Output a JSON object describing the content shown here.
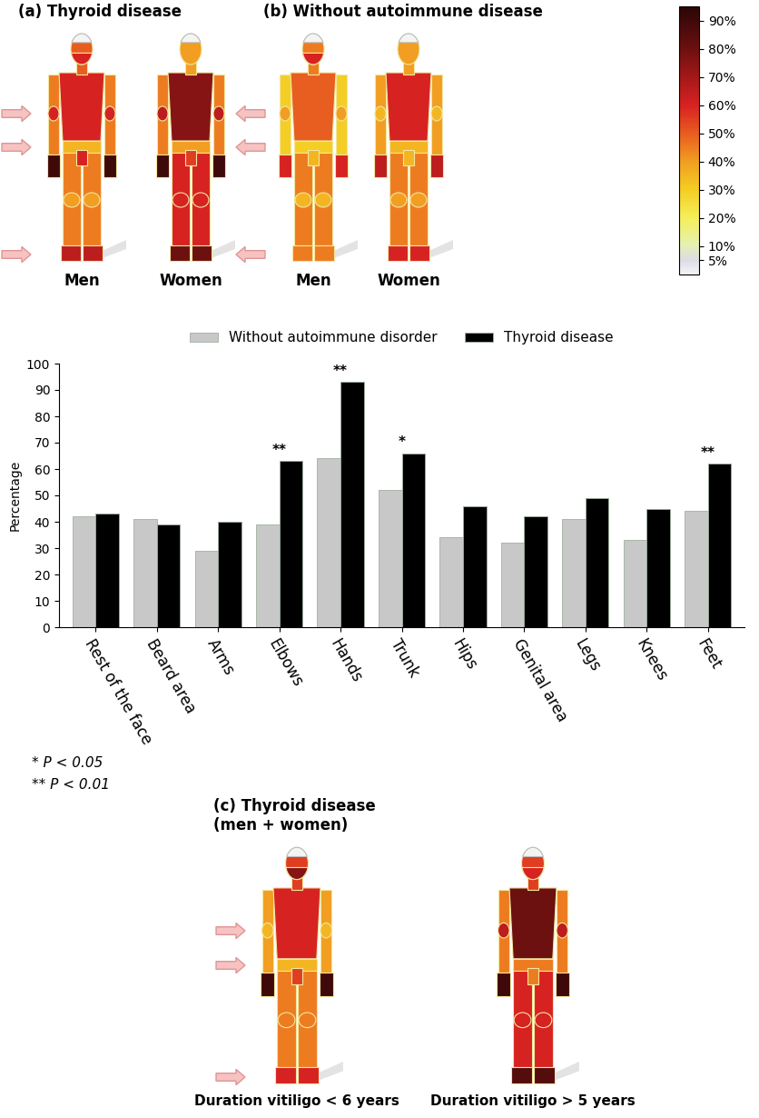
{
  "chart_data": {
    "type": "bar",
    "categories": [
      "Rest of the face",
      "Beard area",
      "Arms",
      "Elbows",
      "Hands",
      "Trunk",
      "Hips",
      "Genital area",
      "Legs",
      "Knees",
      "Feet"
    ],
    "series": [
      {
        "name": "Without autoimmune disorder",
        "color": "#c8c8c8",
        "values": [
          42,
          41,
          29,
          39,
          64,
          52,
          34,
          32,
          41,
          33,
          44
        ]
      },
      {
        "name": "Thyroid disease",
        "color": "#000000",
        "values": [
          43,
          39,
          40,
          63,
          93,
          66,
          46,
          42,
          49,
          45,
          62
        ]
      }
    ],
    "annotations": [
      null,
      null,
      null,
      "**",
      "**",
      "*",
      null,
      null,
      null,
      null,
      "**"
    ],
    "y_label": "Percentage",
    "ylim": [
      0,
      100
    ],
    "yticks": [
      0,
      10,
      20,
      30,
      40,
      50,
      60,
      70,
      80,
      90,
      100
    ],
    "grid": false,
    "legend": "upper center"
  },
  "footnotes": [
    "* P < 0.05",
    "** P < 0.01"
  ],
  "colorbar": {
    "range": [
      0,
      95
    ],
    "ticks": [
      {
        "value": 90,
        "label": "90%"
      },
      {
        "value": 80,
        "label": "80%"
      },
      {
        "value": 70,
        "label": "70%"
      },
      {
        "value": 60,
        "label": "60%"
      },
      {
        "value": 50,
        "label": "50%"
      },
      {
        "value": 40,
        "label": "40%"
      },
      {
        "value": 30,
        "label": "30%"
      },
      {
        "value": 20,
        "label": "20%"
      },
      {
        "value": 10,
        "label": "10%"
      },
      {
        "value": 5,
        "label": "5%"
      }
    ]
  },
  "maps": [
    {
      "title": "(a) Thyroid disease",
      "figures": [
        {
          "name": "Men",
          "values": [
            50,
            60,
            45,
            60,
            90,
            60,
            35,
            60,
            45,
            40,
            65
          ]
        },
        {
          "name": "Women",
          "values": [
            40,
            null,
            45,
            65,
            90,
            75,
            40,
            55,
            60,
            60,
            80
          ]
        }
      ]
    },
    {
      "title": "(b) Without autoimmune disease",
      "figures": [
        {
          "name": "Men",
          "values": [
            45,
            60,
            30,
            40,
            60,
            50,
            30,
            35,
            45,
            35,
            45
          ]
        },
        {
          "name": "Women",
          "values": [
            40,
            null,
            40,
            35,
            65,
            60,
            35,
            35,
            45,
            40,
            60
          ]
        }
      ]
    },
    {
      "title": "(c) Thyroid disease\n(men + women)",
      "figures": [
        {
          "name": "Duration vitiligo < 6 years",
          "values": [
            55,
            75,
            40,
            35,
            90,
            60,
            35,
            55,
            45,
            45,
            60
          ]
        },
        {
          "name": "Duration vitiligo > 5 years",
          "values": [
            55,
            60,
            45,
            65,
            90,
            80,
            45,
            45,
            60,
            60,
            85
          ]
        }
      ]
    }
  ]
}
